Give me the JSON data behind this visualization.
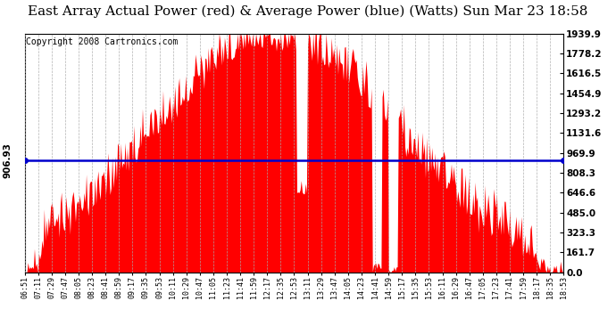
{
  "title": "East Array Actual Power (red) & Average Power (blue) (Watts) Sun Mar 23 18:58",
  "copyright": "Copyright 2008 Cartronics.com",
  "avg_power": 906.93,
  "y_max": 1939.9,
  "y_min": 0.0,
  "y_ticks": [
    0.0,
    161.7,
    323.3,
    485.0,
    646.6,
    808.3,
    969.9,
    1131.6,
    1293.2,
    1454.9,
    1616.5,
    1778.2,
    1939.9
  ],
  "background_color": "#ffffff",
  "fill_color": "#ff0000",
  "line_color": "#0000cc",
  "title_fontsize": 11,
  "copyright_fontsize": 7,
  "x_labels": [
    "06:51",
    "07:11",
    "07:29",
    "07:47",
    "08:05",
    "08:23",
    "08:41",
    "08:59",
    "09:17",
    "09:35",
    "09:53",
    "10:11",
    "10:29",
    "10:47",
    "11:05",
    "11:23",
    "11:41",
    "11:59",
    "12:17",
    "12:35",
    "12:53",
    "13:11",
    "13:29",
    "13:47",
    "14:05",
    "14:23",
    "14:41",
    "14:59",
    "15:17",
    "15:35",
    "15:53",
    "16:11",
    "16:29",
    "16:47",
    "17:05",
    "17:23",
    "17:41",
    "17:59",
    "18:17",
    "18:35",
    "18:53"
  ]
}
